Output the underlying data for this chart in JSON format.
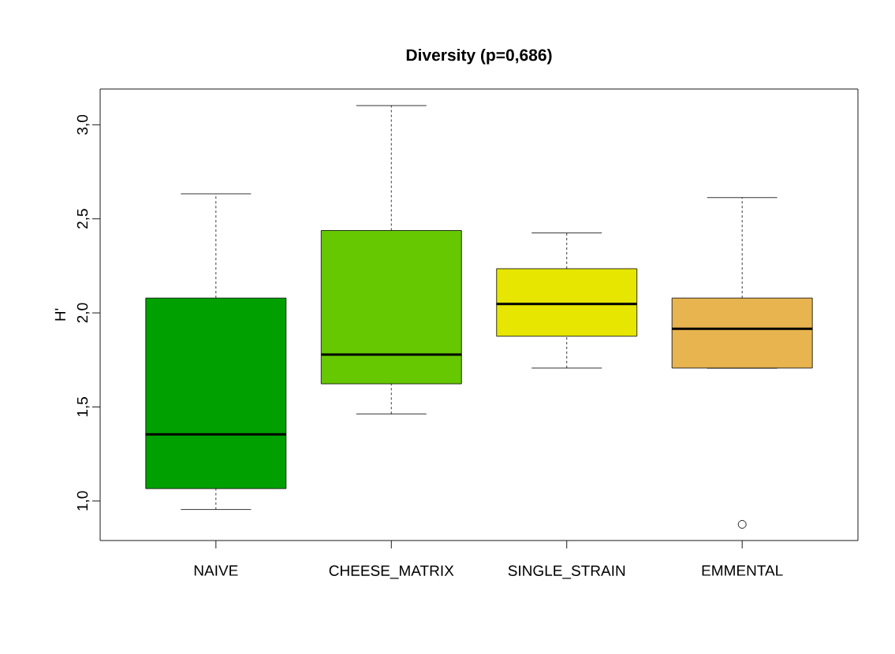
{
  "chart_data": {
    "type": "box",
    "title": "Diversity (p=0,686)",
    "ylabel": "H'",
    "categories": [
      "NAIVE",
      "CHEESE_MATRIX",
      "SINGLE_STRAIN",
      "EMMENTAL"
    ],
    "colors": [
      "#00a000",
      "#66c800",
      "#e6e600",
      "#e8b450"
    ],
    "boxes": [
      {
        "low": 0.955,
        "q1": 1.066,
        "median": 1.354,
        "q3": 2.079,
        "high": 2.633
      },
      {
        "low": 1.463,
        "q1": 1.623,
        "median": 1.778,
        "q3": 2.438,
        "high": 3.102
      },
      {
        "low": 1.707,
        "q1": 1.876,
        "median": 2.048,
        "q3": 2.235,
        "high": 2.425
      },
      {
        "low": 1.707,
        "q1": 1.707,
        "median": 1.916,
        "q3": 2.079,
        "high": 2.613,
        "outliers": [
          0.876
        ]
      }
    ],
    "ylim": [
      0.79,
      3.19
    ],
    "yticks": [
      {
        "value": 1.0,
        "label": "1,0"
      },
      {
        "value": 1.5,
        "label": "1,5"
      },
      {
        "value": 2.0,
        "label": "2,0"
      },
      {
        "value": 2.5,
        "label": "2,5"
      },
      {
        "value": 3.0,
        "label": "3,0"
      }
    ]
  }
}
